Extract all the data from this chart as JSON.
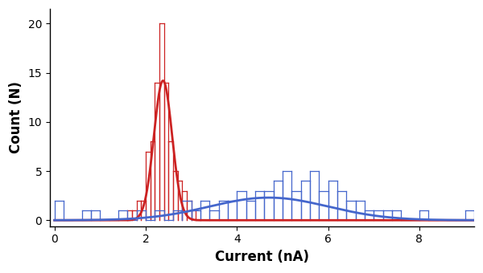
{
  "xlabel": "Current (nA)",
  "ylabel": "Count (N)",
  "xlim": [
    -0.1,
    9.2
  ],
  "ylim": [
    -0.6,
    21.5
  ],
  "yticks": [
    0,
    5,
    10,
    15,
    20
  ],
  "xticks": [
    0,
    2,
    4,
    6,
    8
  ],
  "red_color": "#cc2222",
  "blue_color": "#4466cc",
  "background": "#ffffff",
  "red_hist_bins": [
    1.6,
    1.7,
    1.8,
    1.9,
    2.0,
    2.1,
    2.2,
    2.3,
    2.4,
    2.5,
    2.6,
    2.7,
    2.8,
    2.9,
    3.0,
    3.1
  ],
  "red_hist_counts": [
    1,
    1,
    2,
    2,
    7,
    8,
    14,
    20,
    14,
    8,
    5,
    4,
    3,
    2,
    1,
    0
  ],
  "red_gauss_mean": 2.38,
  "red_gauss_std": 0.2,
  "red_gauss_amp": 14.2,
  "blue_hist_bins": [
    0.0,
    0.2,
    0.6,
    0.8,
    1.0,
    1.2,
    1.4,
    1.6,
    1.8,
    2.0,
    2.2,
    2.4,
    2.6,
    2.8,
    3.0,
    3.2,
    3.4,
    3.6,
    3.8,
    4.0,
    4.2,
    4.4,
    4.6,
    4.8,
    5.0,
    5.2,
    5.4,
    5.6,
    5.8,
    6.0,
    6.2,
    6.4,
    6.6,
    6.8,
    7.0,
    7.2,
    7.4,
    7.6,
    7.8,
    8.0,
    8.2,
    8.6,
    8.8,
    9.0
  ],
  "blue_hist_counts": [
    2,
    0,
    1,
    1,
    0,
    0,
    1,
    0,
    1,
    0,
    1,
    0,
    1,
    2,
    1,
    2,
    1,
    2,
    2,
    3,
    2,
    3,
    3,
    4,
    5,
    3,
    4,
    5,
    3,
    4,
    3,
    2,
    2,
    1,
    1,
    1,
    1,
    0,
    0,
    1,
    0,
    0,
    0,
    1
  ],
  "blue_gauss_mean": 4.7,
  "blue_gauss_std": 1.3,
  "blue_gauss_amp": 2.3,
  "fig_width": 6.0,
  "fig_height": 3.4,
  "dpi": 100,
  "xlabel_fontsize": 12,
  "ylabel_fontsize": 12,
  "tick_fontsize": 10,
  "bin_width": 0.2
}
